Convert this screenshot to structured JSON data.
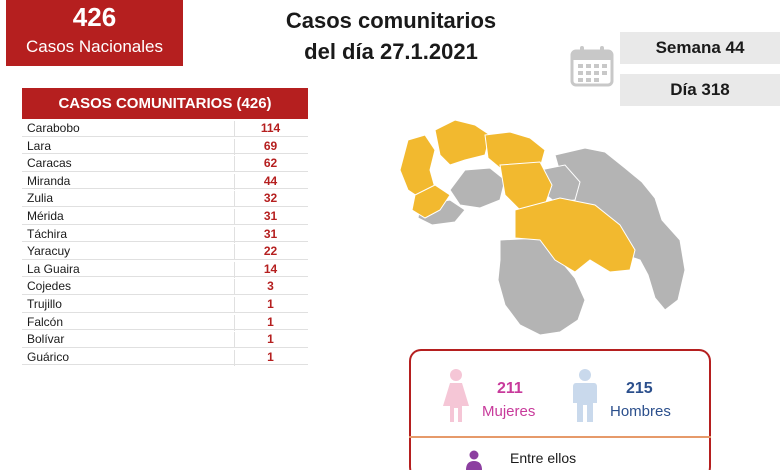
{
  "badge": {
    "number": "426",
    "label": "Casos Nacionales"
  },
  "title": {
    "line1": "Casos comunitarios",
    "line2": "del día 27.1.2021"
  },
  "week": "Semana 44",
  "day": "Día 318",
  "table": {
    "header": "CASOS COMUNITARIOS (426)",
    "rows": [
      {
        "name": "Carabobo",
        "value": "114"
      },
      {
        "name": "Lara",
        "value": "69"
      },
      {
        "name": "Caracas",
        "value": "62"
      },
      {
        "name": "Miranda",
        "value": "44"
      },
      {
        "name": "Zulia",
        "value": "32"
      },
      {
        "name": "Mérida",
        "value": "31"
      },
      {
        "name": "Táchira",
        "value": "31"
      },
      {
        "name": "Yaracuy",
        "value": "22"
      },
      {
        "name": "La Guaira",
        "value": "14"
      },
      {
        "name": "Cojedes",
        "value": "3"
      },
      {
        "name": "Trujillo",
        "value": "1"
      },
      {
        "name": "Falcón",
        "value": "1"
      },
      {
        "name": "Bolívar",
        "value": "1"
      },
      {
        "name": "Guárico",
        "value": "1"
      }
    ]
  },
  "gender": {
    "women_count": "211",
    "women_label": "Mujeres",
    "men_count": "215",
    "men_label": "Hombres",
    "among_label": "Entre ellos"
  },
  "colors": {
    "brand_red": "#b51f1f",
    "highlight": "#f2b92f",
    "grey_region": "#b4b4b4",
    "women": "#c83a9b",
    "men": "#2b4f8c"
  }
}
